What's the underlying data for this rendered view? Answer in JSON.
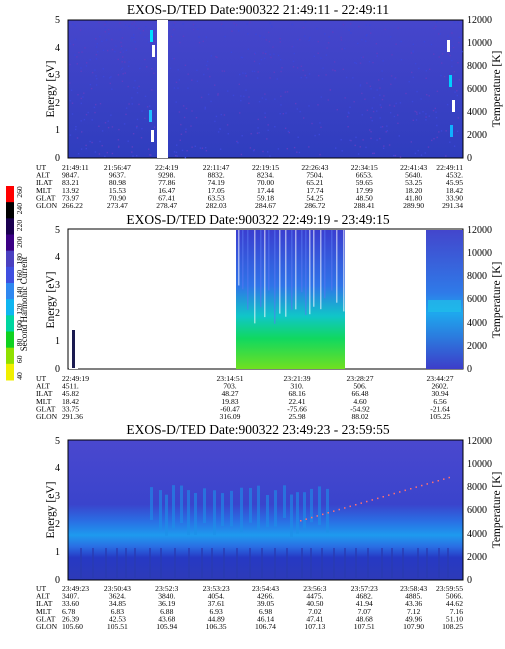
{
  "chart_data": [
    {
      "type": "heatmap",
      "title": "EXOS-D/TED   Date:900322  21:49:11 - 22:49:11",
      "ylabel": "Energy [eV]",
      "ylabel_right": "Temperature [K]",
      "ylim": [
        0,
        5
      ],
      "y2lim": [
        0,
        12000
      ],
      "yticks": [
        "0",
        "1",
        "2",
        "3",
        "4",
        "5"
      ],
      "y2ticks": [
        "0",
        "2000",
        "4000",
        "6000",
        "8000",
        "10000",
        "12000"
      ],
      "ephemeris": {
        "labels": [
          "UT",
          "ALT",
          "ILAT",
          "MLT",
          "GLAT",
          "GLON"
        ],
        "columns": [
          [
            "21:49:11",
            "9847.",
            "83.21",
            "13.92",
            "73.97",
            "266.22"
          ],
          [
            "21:56:47",
            "9637.",
            "80.98",
            "15.53",
            "70.90",
            "273.47"
          ],
          [
            "22:4:19",
            "9298.",
            "77.86",
            "16.47",
            "67.41",
            "278.47"
          ],
          [
            "22:11:47",
            "8832.",
            "74.19",
            "17.05",
            "63.53",
            "282.03"
          ],
          [
            "22:19:15",
            "8234.",
            "70.00",
            "17.44",
            "59.18",
            "284.67"
          ],
          [
            "22:26:43",
            "7504.",
            "65.21",
            "17.74",
            "54.25",
            "286.72"
          ],
          [
            "22:34:15",
            "6653.",
            "59.65",
            "17.99",
            "48.50",
            "288.41"
          ],
          [
            "22:41:43",
            "5640.",
            "53.25",
            "18.20",
            "41.80",
            "289.90"
          ],
          [
            "22:49:11",
            "4532.",
            "45.95",
            "18.42",
            "33.90",
            "291.34"
          ]
        ]
      }
    },
    {
      "type": "heatmap",
      "title": "EXOS-D/TED   Date:900322  22:49:19 - 23:49:15",
      "ylabel": "Energy [eV]",
      "ylabel_right": "Temperature [K]",
      "ylim": [
        0,
        5
      ],
      "y2lim": [
        0,
        12000
      ],
      "yticks": [
        "0",
        "1",
        "2",
        "3",
        "4",
        "5"
      ],
      "y2ticks": [
        "0",
        "2000",
        "4000",
        "6000",
        "8000",
        "10000",
        "12000"
      ],
      "ephemeris": {
        "labels": [
          "UT",
          "ALT",
          "ILAT",
          "MLT",
          "GLAT",
          "GLON"
        ],
        "columns": [
          [
            "22:49:19",
            "4511.",
            "45.82",
            "18.42",
            "33.75",
            "291.36"
          ],
          [
            "23:14:51",
            "703.",
            "48.27",
            "19.83",
            "-60.47",
            "316.09"
          ],
          [
            "23:21:39",
            "310.",
            "68.16",
            "22.41",
            "-75.66",
            "25.98"
          ],
          [
            "23:28:27",
            "506.",
            "66.48",
            "4.60",
            "-54.92",
            "88.02"
          ],
          [
            "23:44:27",
            "2602.",
            "30.94",
            "6.56",
            "-21.64",
            "105.25"
          ]
        ]
      }
    },
    {
      "type": "heatmap",
      "title": "EXOS-D/TED   Date:900322  23:49:23 - 23:59:55",
      "ylabel": "Energy [eV]",
      "ylabel_right": "Temperature [K]",
      "ylim": [
        0,
        5
      ],
      "y2lim": [
        0,
        12000
      ],
      "yticks": [
        "0",
        "1",
        "2",
        "3",
        "4",
        "5"
      ],
      "y2ticks": [
        "0",
        "2000",
        "4000",
        "6000",
        "8000",
        "10000",
        "12000"
      ],
      "ephemeris": {
        "labels": [
          "UT",
          "ALT",
          "ILAT",
          "MLT",
          "GLAT",
          "GLON"
        ],
        "columns": [
          [
            "23:49:23",
            "3407.",
            "33.60",
            "6.78",
            "26.39",
            "105.60"
          ],
          [
            "23:50:43",
            "3624.",
            "34.85",
            "6.83",
            "42.53",
            "105.51"
          ],
          [
            "23:52:3",
            "3840.",
            "36.19",
            "6.88",
            "43.68",
            "105.94"
          ],
          [
            "23:53:23",
            "4054.",
            "37.61",
            "6.93",
            "44.89",
            "106.35"
          ],
          [
            "23:54:43",
            "4266.",
            "39.05",
            "6.98",
            "46.14",
            "106.74"
          ],
          [
            "23:56:3",
            "4475.",
            "40.50",
            "7.02",
            "47.41",
            "107.13"
          ],
          [
            "23:57:23",
            "4682.",
            "41.94",
            "7.07",
            "48.68",
            "107.51"
          ],
          [
            "23:58:43",
            "4885.",
            "43.36",
            "7.12",
            "49.96",
            "107.90"
          ],
          [
            "23:59:55",
            "5066.",
            "44.62",
            "7.16",
            "51.10",
            "108.25"
          ]
        ]
      }
    }
  ],
  "colorbar": {
    "label": "Second Harmonic Current",
    "ticks": [
      "40",
      "60",
      "80",
      "100",
      "120",
      "140",
      "160",
      "180",
      "200",
      "220",
      "240",
      "260"
    ],
    "colors": [
      "#ff0000",
      "#000000",
      "#1a0050",
      "#3b0085",
      "#4b40c0",
      "#3f4fe0",
      "#2f88f0",
      "#10b6f0",
      "#00d6a0",
      "#10d220",
      "#90e000",
      "#f0ef00"
    ]
  }
}
